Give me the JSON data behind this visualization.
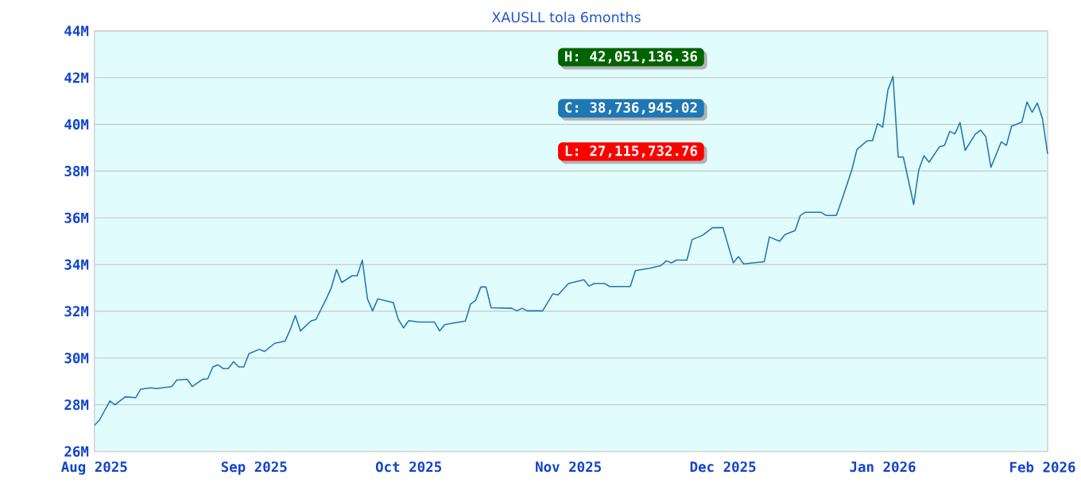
{
  "chart_data": {
    "type": "line",
    "title": "XAUSLL tola  6months",
    "annotations": [
      "H: 42,051,136.36",
      "C: 38,736,945.02",
      "L: 27,115,732.76"
    ],
    "x": [
      "2025-08-01",
      "2025-08-02",
      "2025-08-04",
      "2025-08-05",
      "2025-08-07",
      "2025-08-09",
      "2025-08-10",
      "2025-08-12",
      "2025-08-13",
      "2025-08-16",
      "2025-08-17",
      "2025-08-19",
      "2025-08-20",
      "2025-08-22",
      "2025-08-23",
      "2025-08-24",
      "2025-08-25",
      "2025-08-26",
      "2025-08-27",
      "2025-08-28",
      "2025-08-29",
      "2025-08-30",
      "2025-08-31",
      "2025-09-02",
      "2025-09-03",
      "2025-09-05",
      "2025-09-07",
      "2025-09-08",
      "2025-09-09",
      "2025-09-10",
      "2025-09-12",
      "2025-09-13",
      "2025-09-15",
      "2025-09-16",
      "2025-09-17",
      "2025-09-18",
      "2025-09-20",
      "2025-09-21",
      "2025-09-22",
      "2025-09-23",
      "2025-09-24",
      "2025-09-25",
      "2025-09-28",
      "2025-09-29",
      "2025-09-30",
      "2025-10-01",
      "2025-10-03",
      "2025-10-06",
      "2025-10-07",
      "2025-10-08",
      "2025-10-09",
      "2025-10-12",
      "2025-10-13",
      "2025-10-14",
      "2025-10-15",
      "2025-10-16",
      "2025-10-17",
      "2025-10-21",
      "2025-10-22",
      "2025-10-23",
      "2025-10-24",
      "2025-10-27",
      "2025-10-29",
      "2025-10-30",
      "2025-11-01",
      "2025-11-04",
      "2025-11-05",
      "2025-11-06",
      "2025-11-08",
      "2025-11-09",
      "2025-11-13",
      "2025-11-14",
      "2025-11-17",
      "2025-11-19",
      "2025-11-20",
      "2025-11-21",
      "2025-11-22",
      "2025-11-24",
      "2025-11-25",
      "2025-11-27",
      "2025-11-29",
      "2025-12-01",
      "2025-12-03",
      "2025-12-04",
      "2025-12-05",
      "2025-12-09",
      "2025-12-10",
      "2025-12-12",
      "2025-12-13",
      "2025-12-15",
      "2025-12-16",
      "2025-12-17",
      "2025-12-20",
      "2025-12-21",
      "2025-12-23",
      "2025-12-24",
      "2025-12-26",
      "2025-12-27",
      "2025-12-29",
      "2025-12-30",
      "2025-12-31",
      "2026-01-01",
      "2026-01-02",
      "2026-01-03",
      "2026-01-04",
      "2026-01-05",
      "2026-01-06",
      "2026-01-07",
      "2026-01-08",
      "2026-01-09",
      "2026-01-10",
      "2026-01-12",
      "2026-01-13",
      "2026-01-14",
      "2026-01-15",
      "2026-01-16",
      "2026-01-17",
      "2026-01-19",
      "2026-01-20",
      "2026-01-21",
      "2026-01-22",
      "2026-01-24",
      "2026-01-25",
      "2026-01-26",
      "2026-01-28",
      "2026-01-29",
      "2026-01-30",
      "2026-01-31",
      "2026-02-01",
      "2026-02-02"
    ],
    "series": [
      {
        "color": "#1f77b4",
        "values": [
          27.12,
          27.35,
          28.16,
          28.0,
          28.34,
          28.3,
          28.67,
          28.73,
          28.69,
          28.78,
          29.06,
          29.09,
          28.78,
          29.09,
          29.11,
          29.62,
          29.71,
          29.55,
          29.55,
          29.84,
          29.62,
          29.62,
          30.19,
          30.37,
          30.28,
          30.63,
          30.72,
          31.21,
          31.82,
          31.16,
          31.58,
          31.65,
          32.53,
          33.02,
          33.79,
          33.23,
          33.52,
          33.52,
          34.19,
          32.53,
          32.02,
          32.53,
          32.37,
          31.65,
          31.29,
          31.6,
          31.54,
          31.54,
          31.16,
          31.43,
          31.47,
          31.58,
          32.31,
          32.47,
          33.04,
          33.04,
          32.15,
          32.13,
          32.02,
          32.13,
          32.02,
          32.02,
          32.75,
          32.7,
          33.19,
          33.35,
          33.08,
          33.19,
          33.19,
          33.06,
          33.06,
          33.74,
          33.85,
          33.96,
          34.16,
          34.07,
          34.19,
          34.19,
          35.07,
          35.25,
          35.58,
          35.58,
          34.07,
          34.34,
          34.03,
          34.12,
          35.18,
          35.0,
          35.28,
          35.46,
          36.1,
          36.24,
          36.24,
          36.1,
          36.1,
          36.72,
          38.05,
          38.93,
          39.3,
          39.3,
          40.03,
          39.88,
          41.47,
          42.05,
          38.6,
          38.6,
          37.6,
          36.57,
          38.05,
          38.66,
          38.38,
          39.04,
          39.1,
          39.7,
          39.59,
          40.08,
          38.89,
          39.59,
          39.75,
          39.48,
          38.16,
          39.25,
          39.1,
          39.92,
          40.1,
          40.96,
          40.52,
          40.91,
          40.25,
          38.74
        ]
      }
    ],
    "xlim": [
      "2025-08-01",
      "2026-02-02"
    ],
    "xticks": [
      {
        "value": "2025-08-01",
        "label": "Aug 2025"
      },
      {
        "value": "2025-09-01",
        "label": "Sep 2025"
      },
      {
        "value": "2025-10-01",
        "label": "Oct 2025"
      },
      {
        "value": "2025-11-01",
        "label": "Nov 2025"
      },
      {
        "value": "2025-12-01",
        "label": "Dec 2025"
      },
      {
        "value": "2026-01-01",
        "label": "Jan 2026"
      },
      {
        "value": "2026-02-01",
        "label": "Feb 2026"
      }
    ],
    "ylim": [
      26,
      44
    ],
    "yticks": [
      {
        "value": 26,
        "label": "26M"
      },
      {
        "value": 28,
        "label": "28M"
      },
      {
        "value": 30,
        "label": "30M"
      },
      {
        "value": 32,
        "label": "32M"
      },
      {
        "value": 34,
        "label": "34M"
      },
      {
        "value": 36,
        "label": "36M"
      },
      {
        "value": 38,
        "label": "38M"
      },
      {
        "value": 40,
        "label": "40M"
      },
      {
        "value": 42,
        "label": "42M"
      },
      {
        "value": 44,
        "label": "44M"
      }
    ],
    "grid": "y",
    "marker": "none",
    "line_style": "solid"
  }
}
